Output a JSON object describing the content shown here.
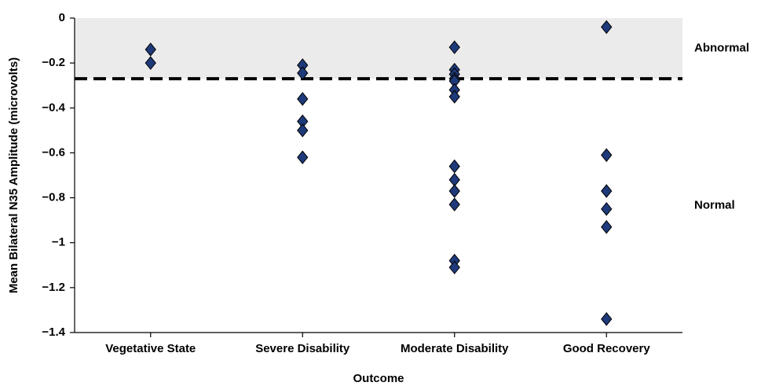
{
  "chart_data": {
    "type": "strip",
    "y_label": "Mean Bilateral N35 Amplitude (microvolts)",
    "x_label": "Outcome",
    "categories": [
      "Vegetative State",
      "Severe Disability",
      "Moderate Disability",
      "Good Recovery"
    ],
    "values": [
      [
        -0.14,
        -0.2
      ],
      [
        -0.21,
        -0.245,
        -0.36,
        -0.46,
        -0.5,
        -0.62
      ],
      [
        -0.13,
        -0.23,
        -0.25,
        -0.27,
        -0.28,
        -0.32,
        -0.35,
        -0.66,
        -0.72,
        -0.77,
        -0.83,
        -1.08,
        -1.11
      ],
      [
        -0.04,
        -0.61,
        -0.77,
        -0.85,
        -0.93,
        -1.34
      ]
    ],
    "color": "#1f3a7a",
    "threshold": -0.27,
    "regions": [
      "Abnormal",
      "Normal"
    ],
    "shade_color": "#ebebeb",
    "ylim": [
      -1.4,
      0
    ],
    "yticks": [
      {
        "value": -1.4,
        "label": "−1.4"
      },
      {
        "value": -1.2,
        "label": "−1.2"
      },
      {
        "value": -1,
        "label": "−1"
      },
      {
        "value": -0.8,
        "label": "−0.8"
      },
      {
        "value": -0.6,
        "label": "−0.6"
      },
      {
        "value": -0.4,
        "label": "−0.4"
      },
      {
        "value": -0.2,
        "label": "−0.2"
      },
      0
    ],
    "grid": false
  }
}
